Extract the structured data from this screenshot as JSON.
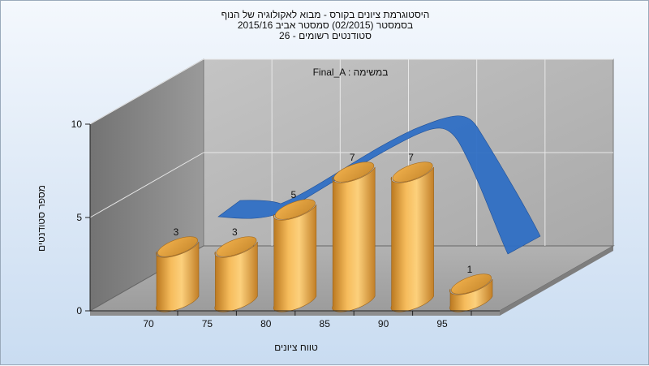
{
  "chart_data": {
    "type": "bar",
    "title_lines": [
      "היסטוגרמת ציונים בקורס - מבוא לאקולוגיה של הנוף",
      "בסמסטר  (02/2015)  סמסטר אביב 2015/16",
      "סטודנטים רשומים - 26"
    ],
    "assignment_label": "Final_A : במשימה",
    "xlabel": "טווח ציונים",
    "ylabel": "מספר סטודנטים",
    "x_ticks": [
      "70",
      "75",
      "80",
      "85",
      "90",
      "95"
    ],
    "y_ticks": [
      "0",
      "5",
      "10"
    ],
    "ylim": [
      0,
      10
    ],
    "values": [
      3,
      3,
      5,
      7,
      7,
      1
    ],
    "data_labels": [
      "3",
      "3",
      "5",
      "7",
      "7",
      "1"
    ],
    "bar_color": "#e8a840",
    "curve_color": "#2f6fc4",
    "style": "3d"
  }
}
